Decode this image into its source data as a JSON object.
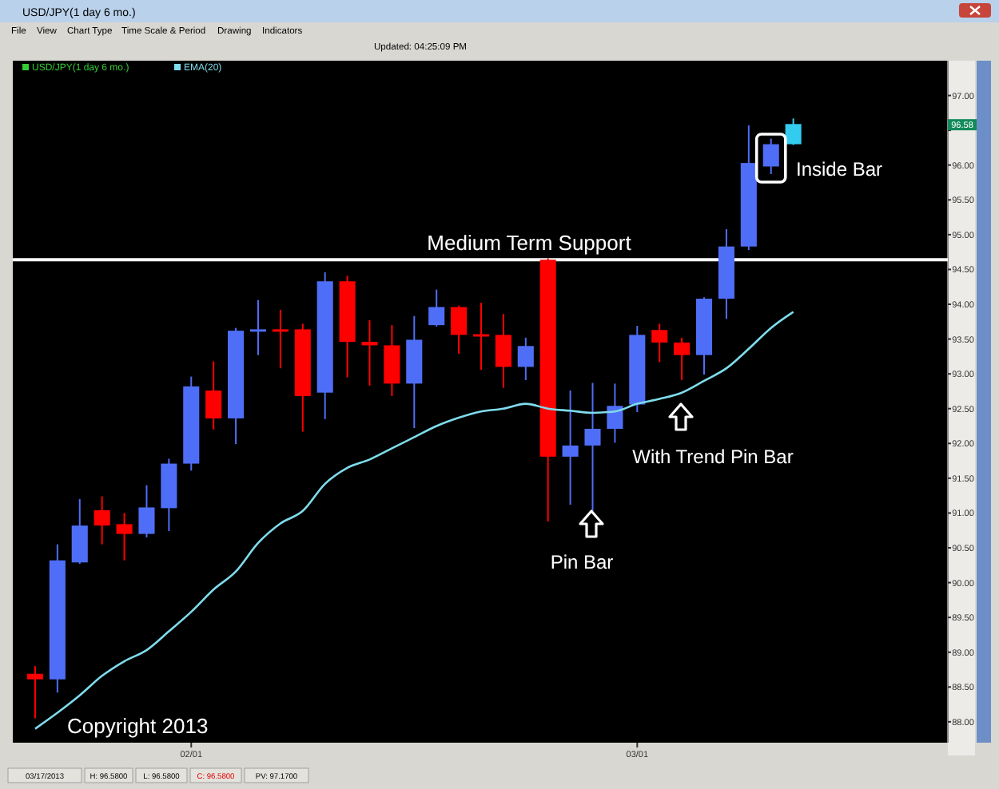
{
  "chart_data": {
    "type": "candlestick",
    "title": "USD/JPY(1 day 6 mo.)",
    "categories": [
      null,
      null,
      null,
      null,
      null,
      null,
      null,
      "02/01",
      null,
      null,
      null,
      null,
      null,
      null,
      null,
      null,
      null,
      null,
      null,
      null,
      null,
      null,
      null,
      null,
      null,
      null,
      null,
      "03/01",
      null,
      null,
      null,
      null,
      null,
      null,
      null,
      null,
      null,
      null,
      null,
      null,
      null
    ],
    "ylim": [
      87.7,
      97.5
    ],
    "yticks": [
      {
        "value": 88,
        "label": "88.00"
      },
      {
        "value": 88.5,
        "label": "88.50"
      },
      {
        "value": 89,
        "label": "89.00"
      },
      {
        "value": 89.5,
        "label": "89.50"
      },
      {
        "value": 90,
        "label": "90.00"
      },
      {
        "value": 90.5,
        "label": "90.50"
      },
      {
        "value": 91,
        "label": "91.00"
      },
      {
        "value": 91.5,
        "label": "91.50"
      },
      {
        "value": 92,
        "label": "92.00"
      },
      {
        "value": 92.5,
        "label": "92.50"
      },
      {
        "value": 93,
        "label": "93.00"
      },
      {
        "value": 93.5,
        "label": "93.50"
      },
      {
        "value": 94,
        "label": "94.00"
      },
      {
        "value": 94.5,
        "label": "94.50"
      },
      {
        "value": 95,
        "label": "95.00"
      },
      {
        "value": 95.5,
        "label": "95.50"
      },
      {
        "value": 96,
        "label": "96.00"
      },
      {
        "value": 96.5,
        "label": null
      },
      {
        "value": 97,
        "label": "97.00"
      }
    ],
    "grid": false,
    "legend": "top left",
    "series": [
      {
        "type": "candlestick",
        "colors": [
          "#ff0000",
          "#4f6ef7",
          "#4f6ef7",
          "#ff0000",
          "#ff0000",
          "#4f6ef7",
          "#4f6ef7",
          "#4f6ef7",
          "#ff0000",
          "#4f6ef7",
          "#4f6ef7",
          "#ff0000",
          "#ff0000",
          "#4f6ef7",
          "#ff0000",
          "#ff0000",
          "#ff0000",
          "#4f6ef7",
          "#4f6ef7",
          "#ff0000",
          "#ff0000",
          "#ff0000",
          "#4f6ef7",
          "#ff0000",
          "#4f6ef7",
          "#4f6ef7",
          "#4f6ef7",
          "#4f6ef7",
          "#ff0000",
          "#ff0000",
          "#4f6ef7",
          "#4f6ef7",
          "#4f6ef7",
          "#4f6ef7",
          "#33ccee",
          null,
          null,
          null,
          null,
          null,
          null
        ],
        "ohlc": [
          [
            88.69,
            88.8,
            88.05,
            88.61
          ],
          [
            88.61,
            90.55,
            88.42,
            90.32
          ],
          [
            90.29,
            91.2,
            90.27,
            90.82
          ],
          [
            91.04,
            91.24,
            90.55,
            90.82
          ],
          [
            90.84,
            91.0,
            90.32,
            90.7
          ],
          [
            90.7,
            91.4,
            90.65,
            91.08
          ],
          [
            91.07,
            91.78,
            90.74,
            91.71
          ],
          [
            91.71,
            92.96,
            91.61,
            92.82
          ],
          [
            92.76,
            93.18,
            92.2,
            92.36
          ],
          [
            92.36,
            93.66,
            91.99,
            93.62
          ],
          [
            93.62,
            94.06,
            93.27,
            93.64
          ],
          [
            93.64,
            93.92,
            93.08,
            93.62
          ],
          [
            93.64,
            93.72,
            92.17,
            92.68
          ],
          [
            92.73,
            94.46,
            92.35,
            94.33
          ],
          [
            94.33,
            94.41,
            92.95,
            93.46
          ],
          [
            93.46,
            93.77,
            92.83,
            93.41
          ],
          [
            93.41,
            93.7,
            92.68,
            92.86
          ],
          [
            92.86,
            93.83,
            92.22,
            93.49
          ],
          [
            93.7,
            94.21,
            93.68,
            93.96
          ],
          [
            93.96,
            93.98,
            93.29,
            93.56
          ],
          [
            93.57,
            94.02,
            93.06,
            93.55
          ],
          [
            93.56,
            93.86,
            92.8,
            93.1
          ],
          [
            93.1,
            93.52,
            92.91,
            93.4
          ],
          [
            94.64,
            94.66,
            90.88,
            91.81
          ],
          [
            91.81,
            92.76,
            91.12,
            91.97
          ],
          [
            91.97,
            92.87,
            91.03,
            92.21
          ],
          [
            92.21,
            92.86,
            92.01,
            92.54
          ],
          [
            92.56,
            93.69,
            92.45,
            93.56
          ],
          [
            93.63,
            93.72,
            93.17,
            93.45
          ],
          [
            93.45,
            93.52,
            92.91,
            93.27
          ],
          [
            93.27,
            94.1,
            92.99,
            94.08
          ],
          [
            94.08,
            95.08,
            93.79,
            94.83
          ],
          [
            94.83,
            96.57,
            94.78,
            96.03
          ],
          [
            95.98,
            96.38,
            95.87,
            96.3
          ],
          [
            96.3,
            96.67,
            96.29,
            96.59
          ],
          null,
          null,
          null,
          null,
          null,
          null
        ]
      },
      {
        "type": "line",
        "name": "EMA(20)",
        "color": "#7fdcec",
        "values": [
          87.9,
          88.13,
          88.38,
          88.66,
          88.87,
          89.03,
          89.3,
          89.58,
          89.9,
          90.16,
          90.57,
          90.85,
          91.03,
          91.42,
          91.65,
          91.77,
          91.93,
          92.09,
          92.25,
          92.37,
          92.46,
          92.5,
          92.57,
          92.5,
          92.47,
          92.44,
          92.46,
          92.57,
          92.64,
          92.73,
          92.9,
          93.08,
          93.36,
          93.66,
          93.89,
          null,
          null,
          null,
          null,
          null,
          null
        ]
      }
    ],
    "ref_lines": [
      {
        "axis": "y",
        "value": 94.64,
        "label": "Medium Term Support",
        "color": "#ffffff"
      }
    ],
    "annotations": [
      "USD/JPY(1 day 6 mo.)",
      "File",
      "View",
      "Chart Type",
      "Time Scale & Period",
      "Drawing",
      "Indicators",
      "Updated: 04:25:09 PM",
      "Pin Bar",
      "With Trend Pin Bar",
      "Inside Bar",
      "Copyright 2013",
      "03/17/2013",
      "H: 96.5800",
      "L: 96.5800",
      "C: 96.5800",
      "PV: 97.1700",
      {
        "text": "96.58",
        "y": 96.58
      }
    ]
  }
}
